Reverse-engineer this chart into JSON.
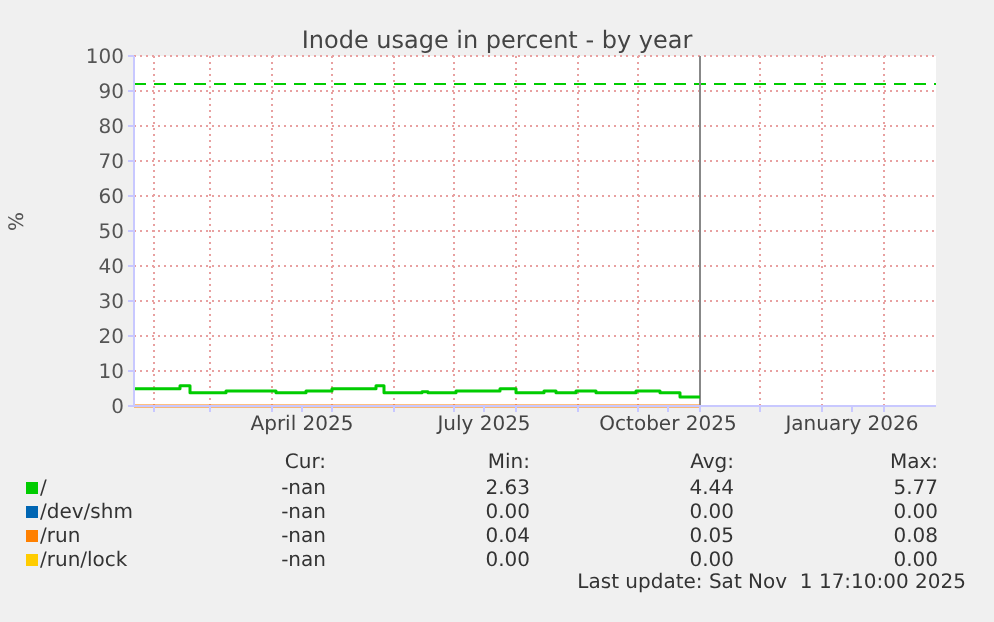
{
  "chart_data": {
    "type": "line",
    "title": "Inode usage in percent - by year",
    "ylabel": "%",
    "xlim": [
      "2025-01-22",
      "2026-02-27"
    ],
    "xticks": [
      {
        "value": "2025-02-01",
        "label": null
      },
      {
        "value": "2025-03-01",
        "label": null
      },
      {
        "value": "2025-04-01",
        "label": null
      },
      {
        "value": "2025-04-16",
        "label": "April 2025"
      },
      {
        "value": "2025-05-01",
        "label": null
      },
      {
        "value": "2025-06-01",
        "label": null
      },
      {
        "value": "2025-07-01",
        "label": null
      },
      {
        "value": "2025-07-16",
        "label": "July 2025"
      },
      {
        "value": "2025-08-01",
        "label": null
      },
      {
        "value": "2025-09-01",
        "label": null
      },
      {
        "value": "2025-10-01",
        "label": null
      },
      {
        "value": "2025-10-16",
        "label": "October 2025"
      },
      {
        "value": "2025-11-01",
        "label": null
      },
      {
        "value": "2025-12-01",
        "label": null
      },
      {
        "value": "2026-01-01",
        "label": null
      },
      {
        "value": "2026-01-16",
        "label": "January 2026"
      },
      {
        "value": "2026-02-01",
        "label": null
      }
    ],
    "ylim": [
      0,
      100
    ],
    "yticks": [
      0,
      10,
      20,
      30,
      40,
      50,
      60,
      70,
      80,
      90,
      100
    ],
    "grid": true,
    "legend": "bottom",
    "series": [
      {
        "name": "/",
        "color": "#00cc00",
        "type": "step",
        "x": [
          "2025-01-22",
          "2025-02-14",
          "2025-02-19",
          "2025-03-09",
          "2025-04-03",
          "2025-04-18",
          "2025-05-01",
          "2025-05-23",
          "2025-05-27",
          "2025-06-15",
          "2025-06-18",
          "2025-07-02",
          "2025-07-24",
          "2025-08-01",
          "2025-08-15",
          "2025-08-21",
          "2025-08-31",
          "2025-09-10",
          "2025-09-30",
          "2025-10-12",
          "2025-10-22",
          "2025-11-01"
        ],
        "values": [
          4.9,
          5.8,
          3.8,
          4.3,
          3.8,
          4.3,
          4.9,
          5.8,
          3.8,
          4.1,
          3.8,
          4.3,
          4.9,
          3.8,
          4.3,
          3.8,
          4.3,
          3.8,
          4.3,
          3.8,
          2.6,
          2.6
        ]
      },
      {
        "name": "/dev/shm",
        "color": "#0066b3",
        "type": "step"
      },
      {
        "name": "/run",
        "color": "#ff8000",
        "type": "step",
        "x": [
          "2025-01-22",
          "2025-11-01"
        ],
        "values": [
          0,
          0
        ]
      },
      {
        "name": "/run/lock",
        "color": "#ffcc00",
        "type": "step"
      }
    ],
    "ref_lines": [
      {
        "axis": "y",
        "value": 92,
        "color": "#00cc00",
        "line_style": "dashed"
      },
      {
        "axis": "x",
        "value": "2025-11-01",
        "color": "#888888",
        "line_style": "solid"
      }
    ],
    "annotations": [
      "Cur:",
      "Min:",
      "Avg:",
      "Max:",
      "-nan",
      "2.63",
      "4.44",
      "5.77",
      "-nan",
      "0.00",
      "0.00",
      "0.00",
      "-nan",
      "0.04",
      "0.05",
      "0.08",
      "-nan",
      "0.00",
      "0.00",
      "0.00",
      "Last update: Sat Nov  1 17:10:00 2025"
    ]
  }
}
